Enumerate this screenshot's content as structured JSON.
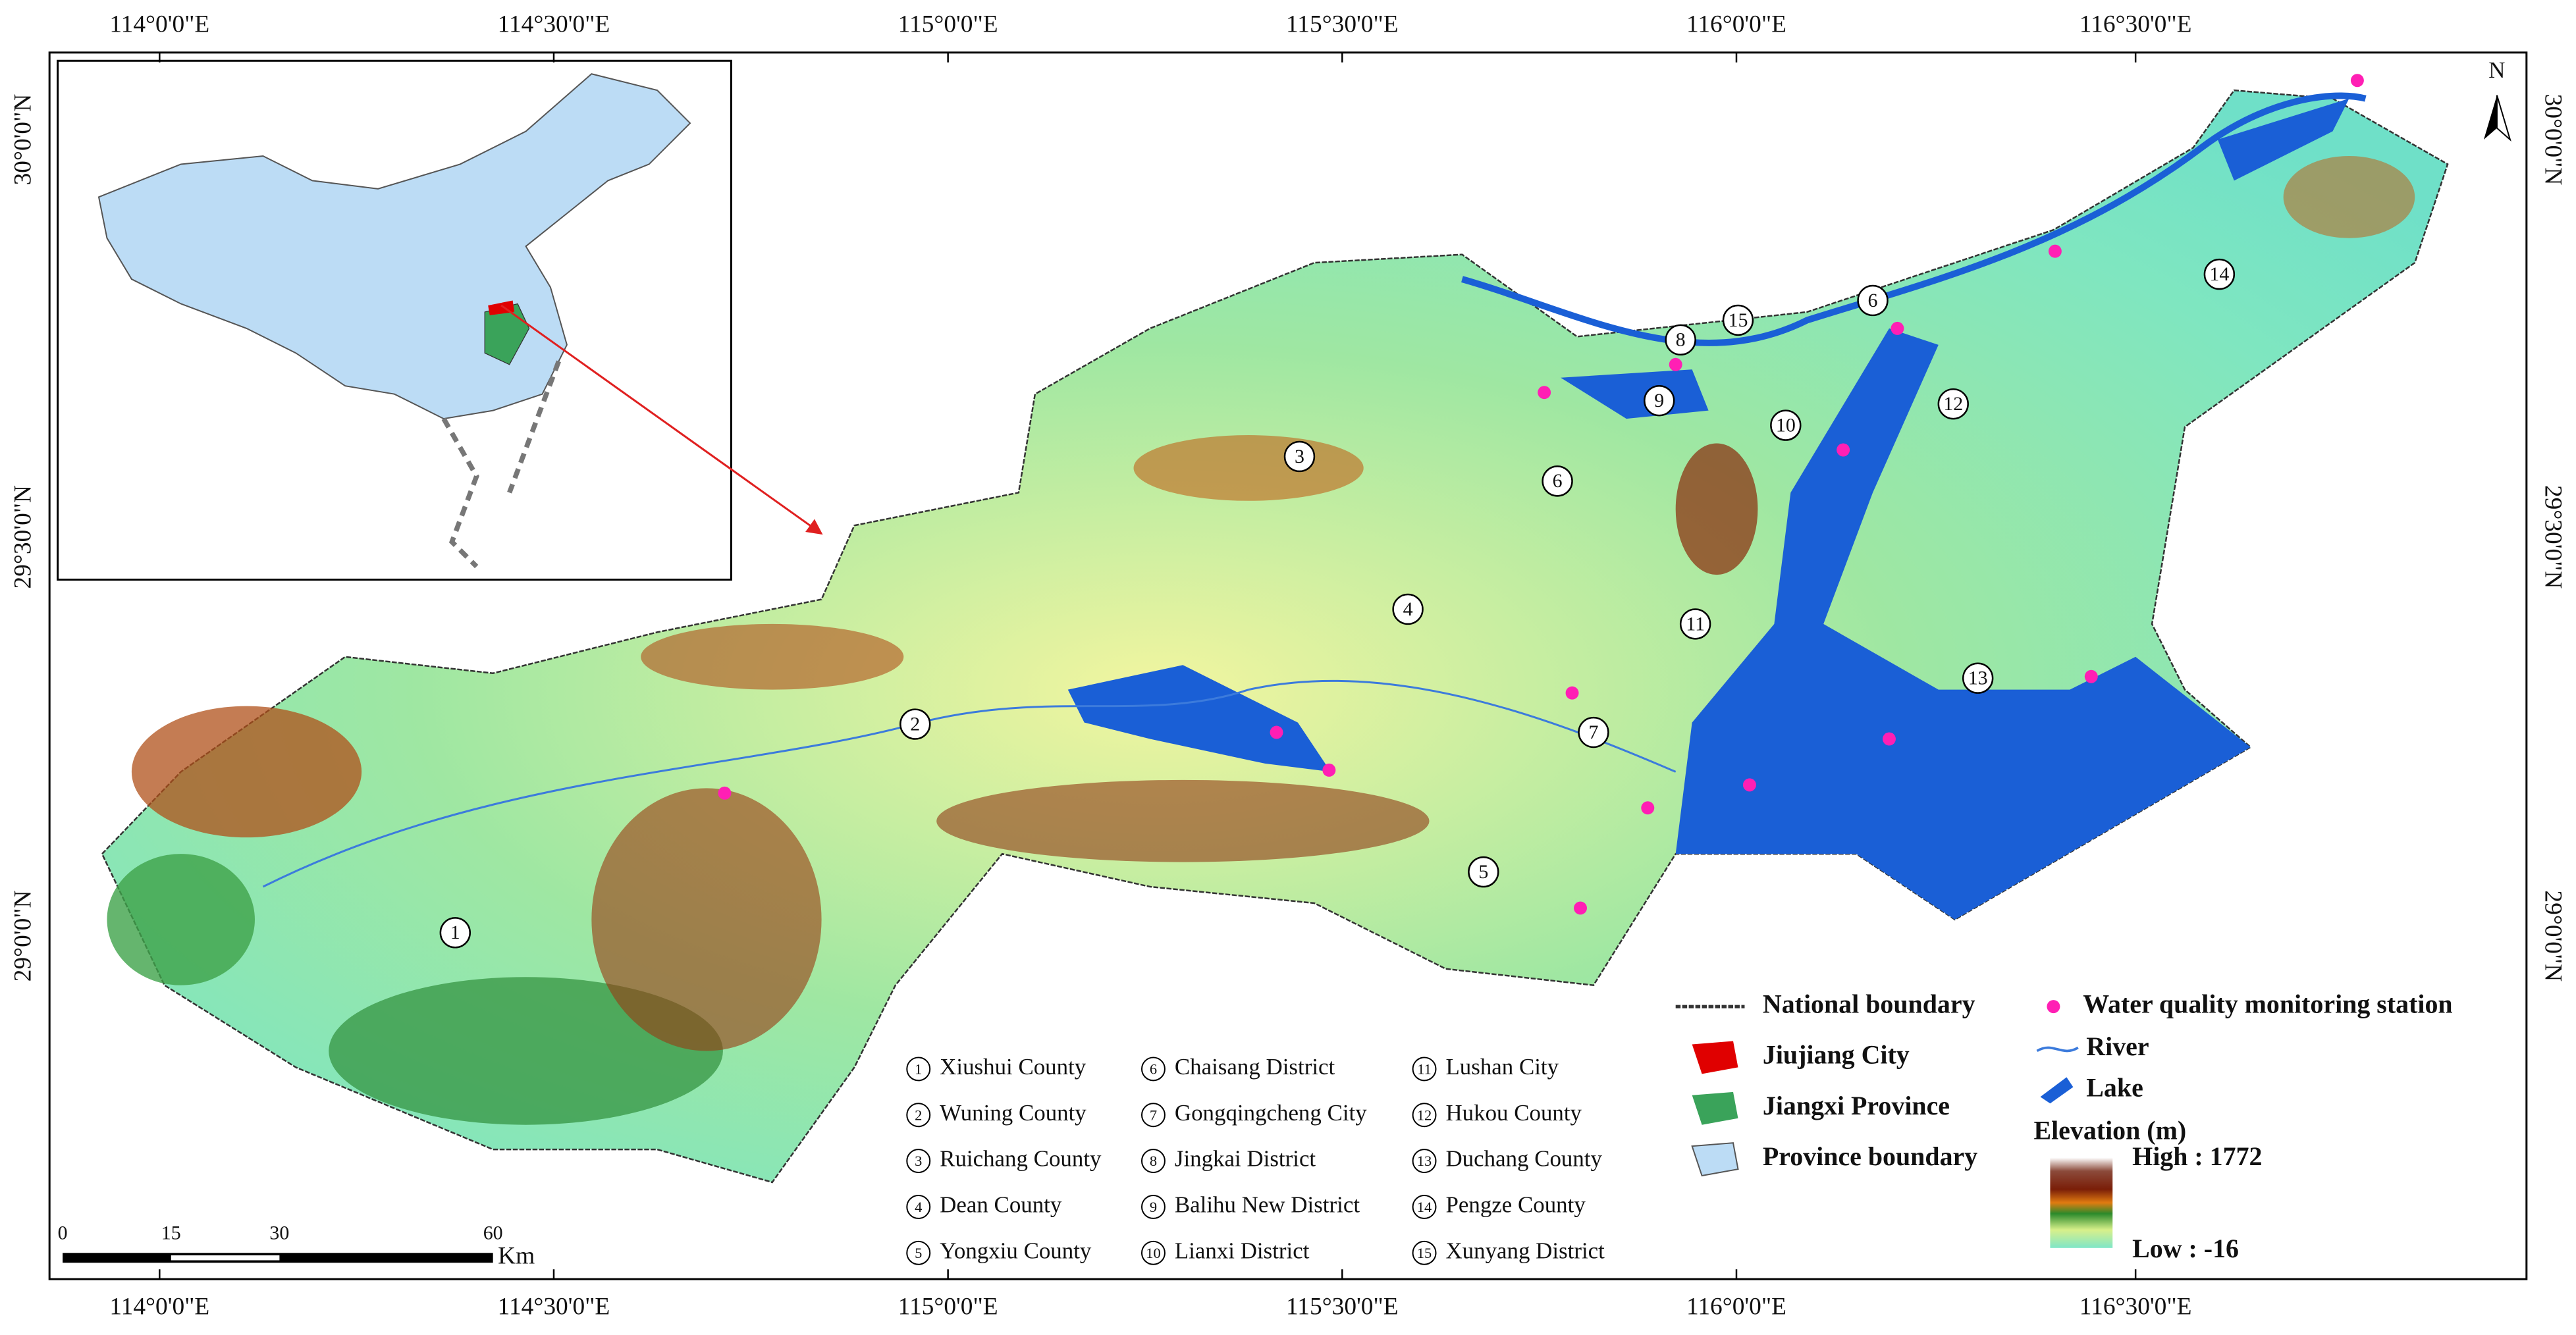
{
  "graticule": {
    "top": [
      "114°0'0\"E",
      "114°30'0\"E",
      "115°0'0\"E",
      "115°30'0\"E",
      "116°0'0\"E",
      "116°30'0\"E"
    ],
    "bottom": [
      "114°0'0\"E",
      "114°30'0\"E",
      "115°0'0\"E",
      "115°30'0\"E",
      "116°0'0\"E",
      "116°30'0\"E"
    ],
    "left": [
      "30°0'0\"N",
      "29°30'0\"N",
      "29°0'0\"N"
    ],
    "right": [
      "30°0'0\"N",
      "29°30'0\"N",
      "29°0'0\"N"
    ]
  },
  "north_arrow": "N",
  "map_labels": [
    "1",
    "2",
    "3",
    "4",
    "5",
    "6",
    "6",
    "7",
    "8",
    "9",
    "10",
    "11",
    "12",
    "13",
    "14",
    "15"
  ],
  "districts": [
    {
      "number": "1",
      "name": "Xiushui County"
    },
    {
      "number": "2",
      "name": "Wuning County"
    },
    {
      "number": "3",
      "name": "Ruichang County"
    },
    {
      "number": "4",
      "name": "Dean County"
    },
    {
      "number": "5",
      "name": "Yongxiu County"
    },
    {
      "number": "6",
      "name": "Chaisang District"
    },
    {
      "number": "7",
      "name": "Gongqingcheng City"
    },
    {
      "number": "8",
      "name": "Jingkai District"
    },
    {
      "number": "9",
      "name": "Balihu New District"
    },
    {
      "number": "10",
      "name": "Lianxi District"
    },
    {
      "number": "11",
      "name": "Lushan City"
    },
    {
      "number": "12",
      "name": "Hukou County"
    },
    {
      "number": "13",
      "name": "Duchang County"
    },
    {
      "number": "14",
      "name": "Pengze County"
    },
    {
      "number": "15",
      "name": "Xunyang District"
    }
  ],
  "legend": {
    "national_boundary": "National boundary",
    "jiujiang_city": "Jiujiang City",
    "jiangxi_province": "Jiangxi Province",
    "province_boundary": "Province boundary",
    "station": "Water quality monitoring station",
    "river": "River",
    "lake": "Lake",
    "elevation_title": "Elevation (m)",
    "high": "High : 1772",
    "low": "Low :  -16"
  },
  "scale_bar": {
    "ticks": [
      "0",
      "15",
      "30",
      "60"
    ],
    "unit": "Km"
  }
}
